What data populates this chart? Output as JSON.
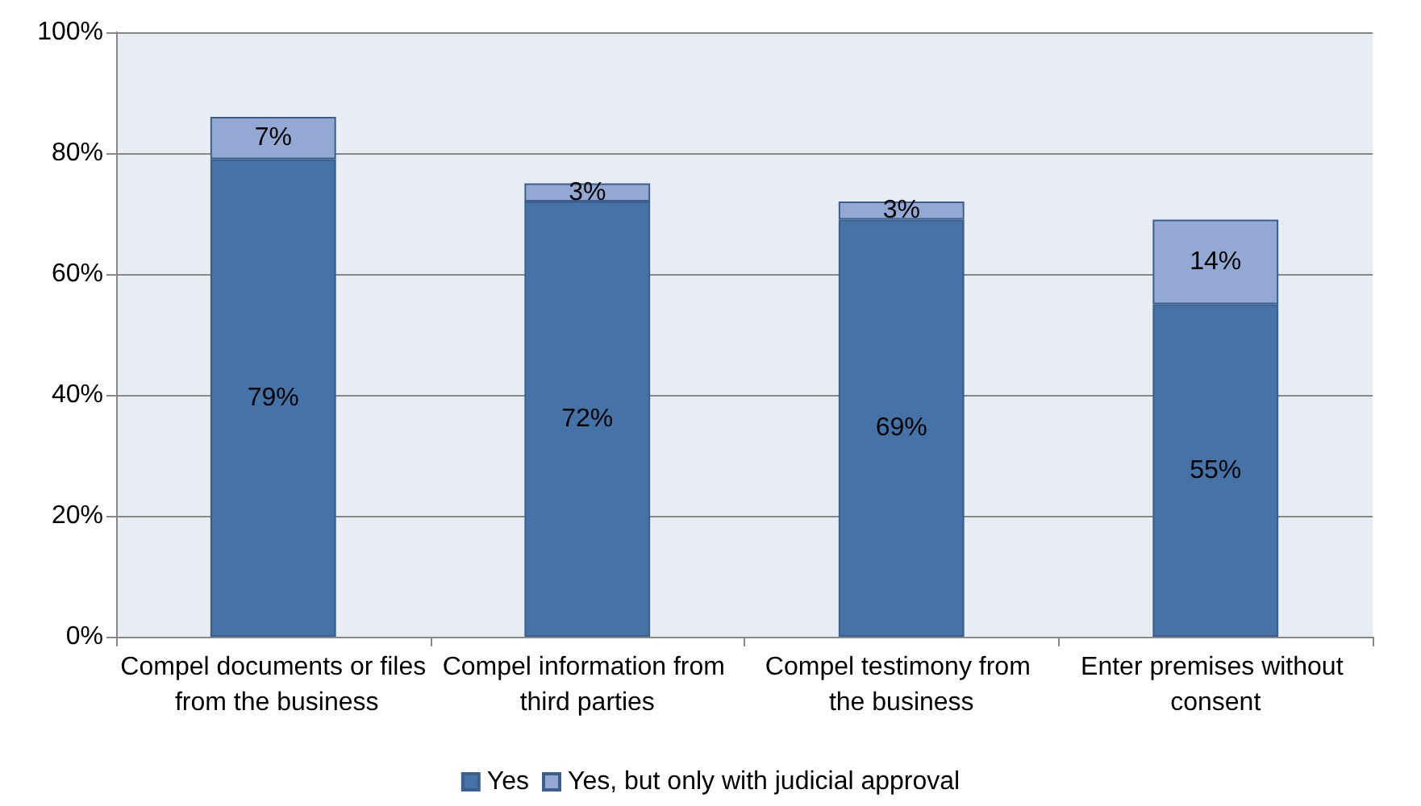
{
  "chart_data": {
    "type": "bar",
    "stacked": true,
    "categories": [
      "Compel documents or files from the business",
      "Compel information from third parties",
      "Compel testimony from the business",
      "Enter premises without consent"
    ],
    "series": [
      {
        "name": "Yes",
        "color": "#4572a7",
        "values": [
          79,
          72,
          69,
          55
        ],
        "value_labels": [
          "79%",
          "72%",
          "69%",
          "55%"
        ]
      },
      {
        "name": "Yes, but only with judicial approval",
        "color": "#93a9d3",
        "values": [
          7,
          3,
          3,
          14
        ],
        "value_labels": [
          "7%",
          "3%",
          "3%",
          "14%"
        ]
      }
    ],
    "ylim": [
      0,
      100
    ],
    "yticks": [
      {
        "value": 0,
        "label": "0%"
      },
      {
        "value": 20,
        "label": "20%"
      },
      {
        "value": 40,
        "label": "40%"
      },
      {
        "value": 60,
        "label": "60%"
      },
      {
        "value": 80,
        "label": "80%"
      },
      {
        "value": 100,
        "label": "100%"
      }
    ],
    "grid": "y",
    "legend": "bottom"
  }
}
